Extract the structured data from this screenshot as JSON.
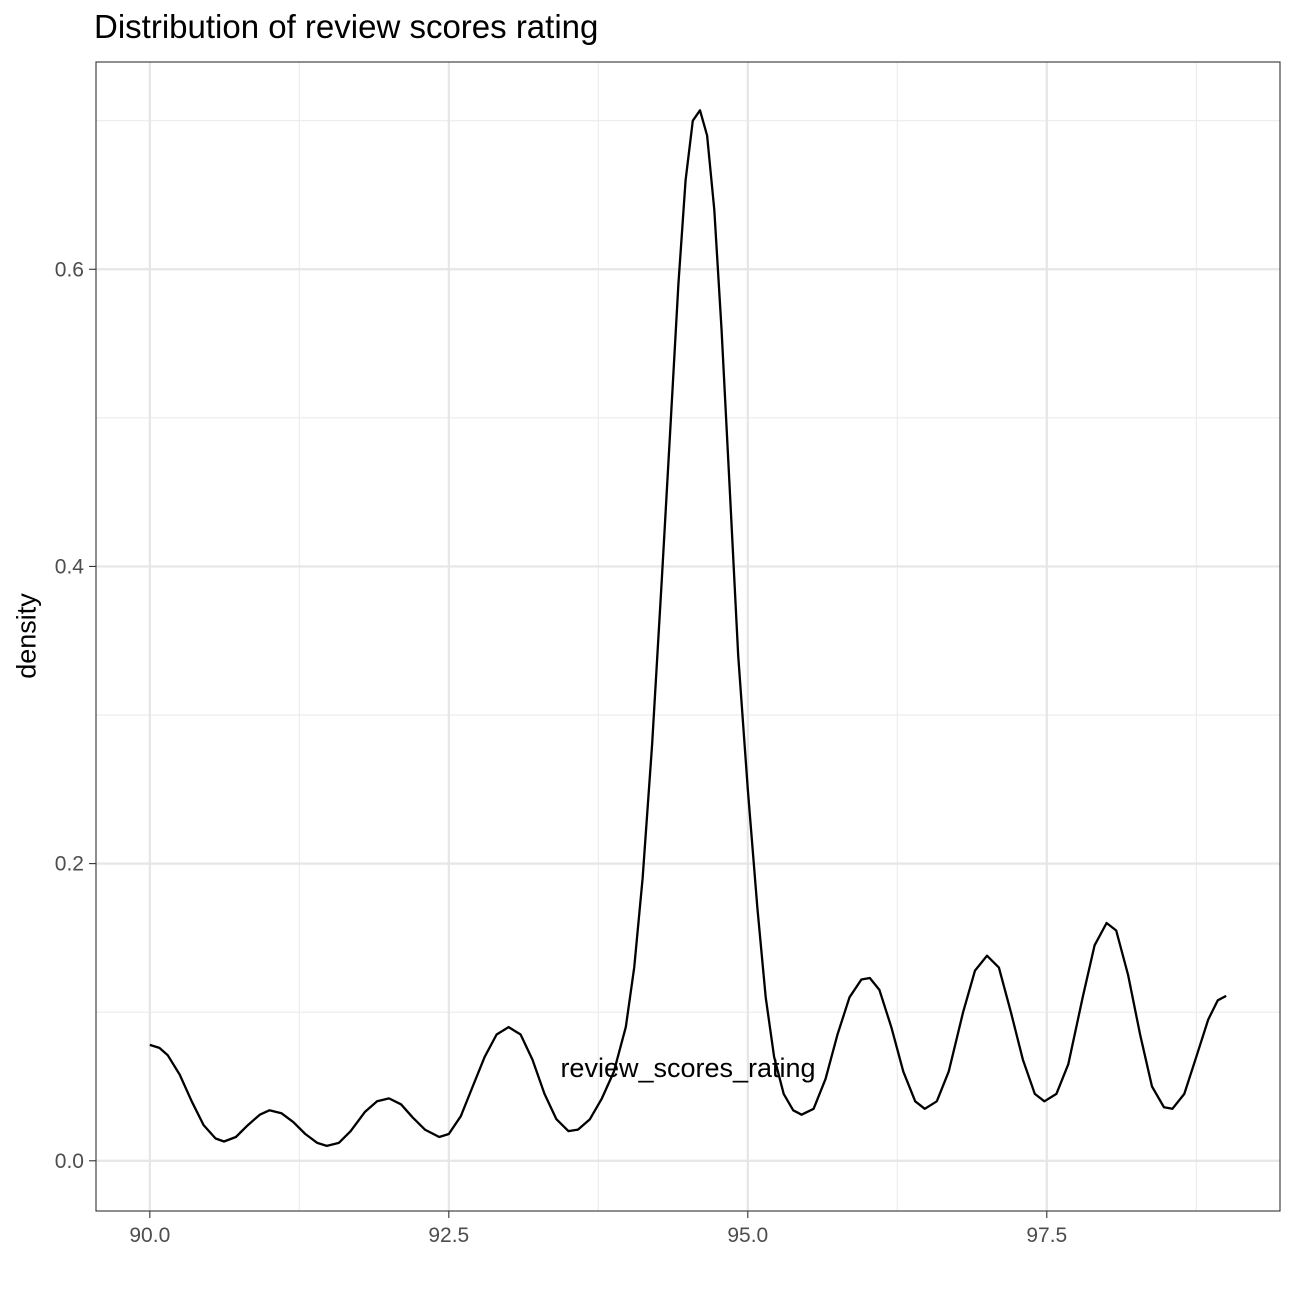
{
  "chart_data": {
    "type": "line",
    "title": "Distribution of review scores rating",
    "xlabel": "review_scores_rating",
    "ylabel": "density",
    "xlim": [
      89.55,
      99.45
    ],
    "ylim": [
      -0.0338,
      0.7395
    ],
    "x_ticks": [
      90.0,
      92.5,
      95.0,
      97.5
    ],
    "x_tick_labels": [
      "90.0",
      "92.5",
      "95.0",
      "97.5"
    ],
    "y_ticks": [
      0.0,
      0.2,
      0.4,
      0.6
    ],
    "y_tick_labels": [
      "0.0",
      "0.2",
      "0.4",
      "0.6"
    ],
    "x_minor_ticks": [
      91.25,
      93.75,
      96.25,
      98.75
    ],
    "y_minor_ticks": [
      0.1,
      0.3,
      0.5,
      0.7
    ],
    "grid": true,
    "series": [
      {
        "color": "#000000",
        "points": [
          [
            90.0,
            0.078
          ],
          [
            90.08,
            0.076
          ],
          [
            90.15,
            0.071
          ],
          [
            90.25,
            0.058
          ],
          [
            90.35,
            0.04
          ],
          [
            90.45,
            0.024
          ],
          [
            90.55,
            0.015
          ],
          [
            90.62,
            0.013
          ],
          [
            90.72,
            0.016
          ],
          [
            90.82,
            0.024
          ],
          [
            90.92,
            0.031
          ],
          [
            91.0,
            0.034
          ],
          [
            91.1,
            0.032
          ],
          [
            91.2,
            0.026
          ],
          [
            91.3,
            0.018
          ],
          [
            91.4,
            0.012
          ],
          [
            91.48,
            0.01
          ],
          [
            91.58,
            0.012
          ],
          [
            91.68,
            0.02
          ],
          [
            91.8,
            0.033
          ],
          [
            91.9,
            0.04
          ],
          [
            92.0,
            0.042
          ],
          [
            92.1,
            0.038
          ],
          [
            92.2,
            0.029
          ],
          [
            92.3,
            0.021
          ],
          [
            92.42,
            0.016
          ],
          [
            92.5,
            0.018
          ],
          [
            92.6,
            0.03
          ],
          [
            92.7,
            0.05
          ],
          [
            92.8,
            0.07
          ],
          [
            92.9,
            0.085
          ],
          [
            93.0,
            0.09
          ],
          [
            93.1,
            0.085
          ],
          [
            93.2,
            0.068
          ],
          [
            93.3,
            0.045
          ],
          [
            93.4,
            0.028
          ],
          [
            93.5,
            0.02
          ],
          [
            93.58,
            0.021
          ],
          [
            93.68,
            0.028
          ],
          [
            93.78,
            0.042
          ],
          [
            93.88,
            0.06
          ],
          [
            93.98,
            0.09
          ],
          [
            94.05,
            0.13
          ],
          [
            94.12,
            0.19
          ],
          [
            94.2,
            0.28
          ],
          [
            94.28,
            0.39
          ],
          [
            94.35,
            0.49
          ],
          [
            94.42,
            0.59
          ],
          [
            94.48,
            0.66
          ],
          [
            94.54,
            0.7
          ],
          [
            94.6,
            0.707
          ],
          [
            94.66,
            0.69
          ],
          [
            94.72,
            0.64
          ],
          [
            94.78,
            0.56
          ],
          [
            94.85,
            0.45
          ],
          [
            94.92,
            0.34
          ],
          [
            95.0,
            0.25
          ],
          [
            95.08,
            0.17
          ],
          [
            95.15,
            0.11
          ],
          [
            95.22,
            0.07
          ],
          [
            95.3,
            0.045
          ],
          [
            95.38,
            0.034
          ],
          [
            95.45,
            0.031
          ],
          [
            95.55,
            0.035
          ],
          [
            95.65,
            0.055
          ],
          [
            95.75,
            0.085
          ],
          [
            95.85,
            0.11
          ],
          [
            95.95,
            0.122
          ],
          [
            96.02,
            0.123
          ],
          [
            96.1,
            0.115
          ],
          [
            96.2,
            0.09
          ],
          [
            96.3,
            0.06
          ],
          [
            96.4,
            0.04
          ],
          [
            96.48,
            0.035
          ],
          [
            96.58,
            0.04
          ],
          [
            96.68,
            0.06
          ],
          [
            96.8,
            0.1
          ],
          [
            96.9,
            0.128
          ],
          [
            97.0,
            0.138
          ],
          [
            97.1,
            0.13
          ],
          [
            97.2,
            0.1
          ],
          [
            97.3,
            0.068
          ],
          [
            97.4,
            0.045
          ],
          [
            97.48,
            0.04
          ],
          [
            97.58,
            0.045
          ],
          [
            97.68,
            0.065
          ],
          [
            97.8,
            0.11
          ],
          [
            97.9,
            0.145
          ],
          [
            98.0,
            0.16
          ],
          [
            98.08,
            0.155
          ],
          [
            98.18,
            0.125
          ],
          [
            98.28,
            0.085
          ],
          [
            98.38,
            0.05
          ],
          [
            98.48,
            0.036
          ],
          [
            98.55,
            0.035
          ],
          [
            98.65,
            0.045
          ],
          [
            98.75,
            0.07
          ],
          [
            98.85,
            0.095
          ],
          [
            98.93,
            0.108
          ],
          [
            99.0,
            0.111
          ]
        ]
      }
    ]
  }
}
